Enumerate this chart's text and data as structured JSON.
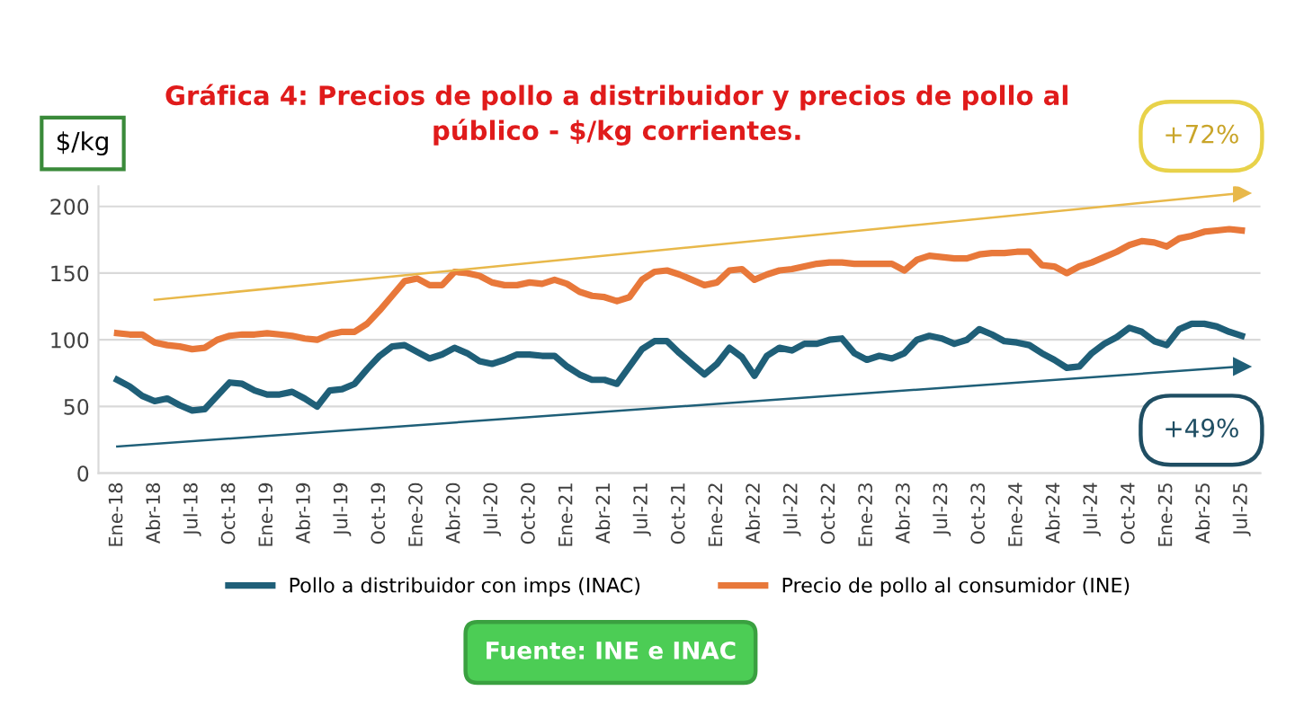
{
  "chart_data": {
    "type": "line",
    "title": "Gráfica 4: Precios de pollo a distribuidor y precios de pollo al\npúblico - $/kg corrientes.",
    "ylabel": "$/kg",
    "categories": [
      "Ene-18",
      null,
      null,
      "Abr-18",
      null,
      null,
      "Jul-18",
      null,
      null,
      "Oct-18",
      null,
      null,
      "Ene-19",
      null,
      null,
      "Abr-19",
      null,
      null,
      "Jul-19",
      null,
      null,
      "Oct-19",
      null,
      null,
      "Ene-20",
      null,
      null,
      "Abr-20",
      null,
      null,
      "Jul-20",
      null,
      null,
      "Oct-20",
      null,
      null,
      "Ene-21",
      null,
      null,
      "Abr-21",
      null,
      null,
      "Jul-21",
      null,
      null,
      "Oct-21",
      null,
      null,
      "Ene-22",
      null,
      null,
      "Abr-22",
      null,
      null,
      "Jul-22",
      null,
      null,
      "Oct-22",
      null,
      null,
      "Ene-23",
      null,
      null,
      "Abr-23",
      null,
      null,
      "Jul-23",
      null,
      null,
      "Oct-23",
      null,
      null,
      "Ene-24",
      null,
      null,
      "Abr-24",
      null,
      null,
      "Jul-24",
      null,
      null,
      "Oct-24",
      null,
      null,
      "Ene-25",
      null,
      null,
      "Abr-25",
      null,
      null,
      "Jul-25"
    ],
    "series": [
      {
        "name": "Pollo a distribuidor con imps (INAC)",
        "color": "#1f5f78",
        "values": [
          70,
          65,
          58,
          54,
          56,
          51,
          47,
          48,
          58,
          68,
          67,
          62,
          59,
          59,
          61,
          56,
          50,
          62,
          63,
          67,
          78,
          88,
          95,
          96,
          91,
          86,
          89,
          94,
          90,
          84,
          82,
          85,
          89,
          89,
          88,
          88,
          80,
          74,
          70,
          70,
          67,
          80,
          93,
          99,
          99,
          90,
          82,
          74,
          82,
          94,
          87,
          73,
          88,
          94,
          92,
          97,
          97,
          100,
          101,
          90,
          85,
          88,
          86,
          90,
          100,
          103,
          101,
          97,
          100,
          108,
          104,
          99,
          98,
          96,
          90,
          85,
          79,
          80,
          90,
          97,
          102,
          109,
          106,
          99,
          96,
          108,
          112,
          112,
          110,
          106,
          103
        ]
      },
      {
        "name": "Precio de pollo al consumidor (INE)",
        "color": "#e8783a",
        "values": [
          105,
          104,
          104,
          98,
          96,
          95,
          93,
          94,
          100,
          103,
          104,
          104,
          105,
          104,
          103,
          101,
          100,
          104,
          106,
          106,
          112,
          122,
          133,
          144,
          146,
          141,
          141,
          151,
          150,
          148,
          143,
          141,
          141,
          143,
          142,
          145,
          142,
          136,
          133,
          132,
          129,
          132,
          145,
          151,
          152,
          149,
          145,
          141,
          143,
          152,
          153,
          145,
          149,
          152,
          153,
          155,
          157,
          158,
          158,
          157,
          157,
          157,
          157,
          152,
          160,
          163,
          162,
          161,
          161,
          164,
          165,
          165,
          166,
          166,
          156,
          155,
          150,
          155,
          158,
          162,
          166,
          171,
          174,
          173,
          170,
          176,
          178,
          181,
          182,
          183,
          182
        ]
      },
      {
        "type": "line",
        "color": "#e8b84a",
        "x": [
          "Abr-18",
          "Jul-25"
        ],
        "values": [
          130,
          210
        ],
        "marker": "triangle"
      },
      {
        "type": "line",
        "color": "#1f5f78",
        "x": [
          "Ene-18",
          "Jul-25"
        ],
        "values": [
          20,
          80
        ],
        "marker": "triangle"
      }
    ],
    "ylim": [
      0,
      215
    ],
    "yticks": [
      0,
      50,
      100,
      150,
      200
    ],
    "grid": "y",
    "legend": "bottom",
    "annotations": [
      "+72%",
      "+49%",
      "Fuente: INE e INAC"
    ]
  }
}
